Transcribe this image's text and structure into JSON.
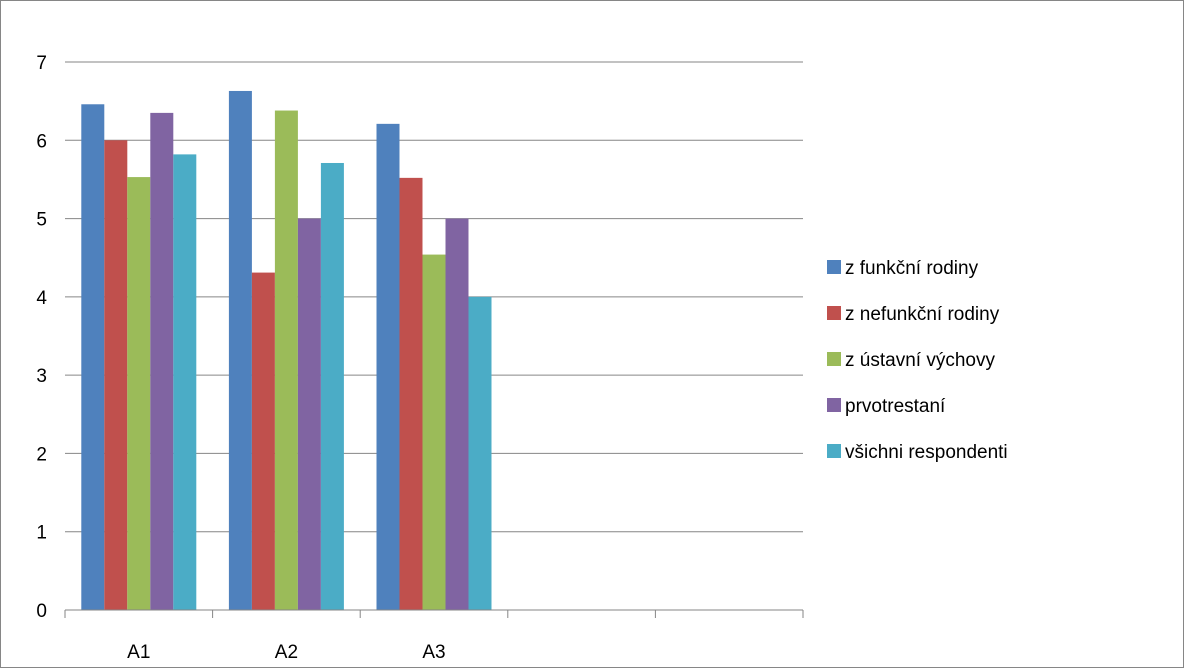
{
  "chart_data": {
    "type": "bar",
    "title": "",
    "xlabel": "",
    "ylabel": "",
    "categories": [
      "A1",
      "A2",
      "A3",
      "",
      ""
    ],
    "ylim": [
      0,
      7
    ],
    "yticks": [
      "0",
      "1",
      "2",
      "3",
      "4",
      "5",
      "6",
      "7"
    ],
    "grid": true,
    "legend_position": "right",
    "series": [
      {
        "name": "z funkční rodiny",
        "color": "#4F81BD",
        "values": [
          6.46,
          6.63,
          6.21,
          null,
          null
        ]
      },
      {
        "name": "z nefunkční rodiny",
        "color": "#C0504D",
        "values": [
          6.0,
          4.31,
          5.52,
          null,
          null
        ]
      },
      {
        "name": "z ústavní výchovy",
        "color": "#9BBB59",
        "values": [
          5.53,
          6.38,
          4.54,
          null,
          null
        ]
      },
      {
        "name": "prvotrestaní",
        "color": "#8064A2",
        "values": [
          6.35,
          5.0,
          5.0,
          null,
          null
        ]
      },
      {
        "name": "všichni respondenti",
        "color": "#4BACC6",
        "values": [
          5.82,
          5.71,
          4.0,
          null,
          null
        ]
      }
    ]
  }
}
